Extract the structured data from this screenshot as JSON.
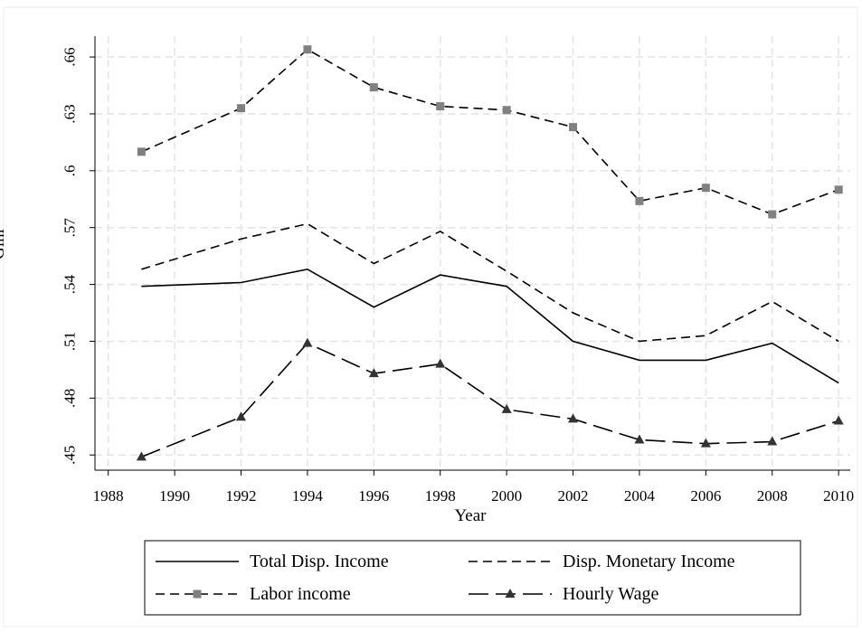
{
  "chart_data": {
    "type": "line",
    "xlabel": "Year",
    "ylabel": "Gini",
    "x": [
      1989,
      1992,
      1994,
      1996,
      1998,
      2000,
      2002,
      2004,
      2006,
      2008,
      2010
    ],
    "series": [
      {
        "name": "Total Disp. Income",
        "color": "#000000",
        "linestyle": "solid",
        "values": [
          0.539,
          0.541,
          0.548,
          0.528,
          0.545,
          0.539,
          0.51,
          0.5,
          0.5,
          0.509,
          0.488
        ]
      },
      {
        "name": "Disp. Monetary Income",
        "color": "#000000",
        "linestyle": "dashed",
        "values": [
          0.548,
          0.564,
          0.572,
          0.551,
          0.568,
          0.547,
          0.525,
          0.51,
          0.513,
          0.531,
          0.51
        ]
      },
      {
        "name": "Labor income",
        "color": "#000000",
        "linestyle": "dashed",
        "marker": "square",
        "marker_color": "#808080",
        "values": [
          0.61,
          0.633,
          0.664,
          0.644,
          0.634,
          0.632,
          0.623,
          0.584,
          0.591,
          0.577,
          0.59
        ]
      },
      {
        "name": "Hourly Wage",
        "color": "#000000",
        "linestyle": "longdash",
        "marker": "triangle",
        "marker_color": "#333333",
        "values": [
          0.449,
          0.47,
          0.509,
          0.493,
          0.498,
          0.474,
          0.469,
          0.458,
          0.456,
          0.457,
          0.468
        ]
      }
    ],
    "xlim": [
      1987.6,
      2010.35
    ],
    "ylim": [
      0.442,
      0.671
    ],
    "xticks": [
      1988,
      1990,
      1992,
      1994,
      1996,
      1998,
      2000,
      2002,
      2004,
      2006,
      2008,
      2010
    ],
    "yticks": [
      {
        "value": 0.45,
        "label": ".45"
      },
      {
        "value": 0.48,
        "label": ".48"
      },
      {
        "value": 0.51,
        "label": ".51"
      },
      {
        "value": 0.54,
        "label": ".54"
      },
      {
        "value": 0.57,
        "label": ".57"
      },
      {
        "value": 0.6,
        "label": ".6"
      },
      {
        "value": 0.63,
        "label": ".63"
      },
      {
        "value": 0.66,
        "label": ".66"
      }
    ],
    "grid": true
  }
}
